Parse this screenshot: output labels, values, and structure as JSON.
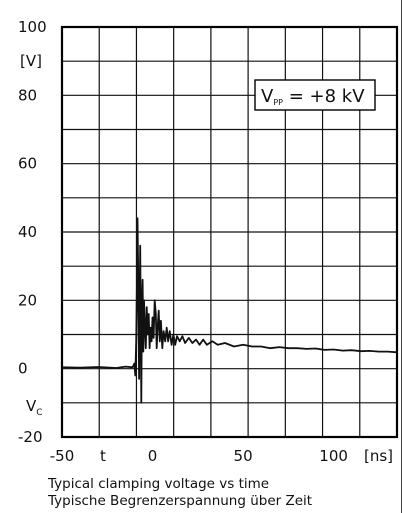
{
  "chart_data": {
    "type": "line",
    "xlabel": "t",
    "ylabel": "V",
    "ylabel_sub": "C",
    "x_unit": "[ns]",
    "y_unit": "[V]",
    "xlim": [
      -50,
      135
    ],
    "ylim": [
      -20,
      100
    ],
    "x_ticks": [
      {
        "value": -50,
        "label": "-50"
      },
      {
        "value": 0,
        "label": "0"
      },
      {
        "value": 50,
        "label": "50"
      },
      {
        "value": 100,
        "label": "100"
      }
    ],
    "y_ticks": [
      {
        "value": -20,
        "label": "-20"
      },
      {
        "value": 0,
        "label": "0"
      },
      {
        "value": 20,
        "label": "20"
      },
      {
        "value": 40,
        "label": "40"
      },
      {
        "value": 60,
        "label": "60"
      },
      {
        "value": 80,
        "label": "80"
      },
      {
        "value": 100,
        "label": "100"
      }
    ],
    "grid": true,
    "annotation": {
      "text_main": "V",
      "text_sub": "PP",
      "text_rest": " = +8 kV"
    },
    "series": [
      {
        "color": "#111111",
        "points": [
          [
            -50,
            0.4
          ],
          [
            -40,
            0.3
          ],
          [
            -30,
            0.5
          ],
          [
            -20,
            0.2
          ],
          [
            -15,
            0.6
          ],
          [
            -11,
            0.4
          ],
          [
            -10,
            1.5
          ],
          [
            -9.5,
            -2
          ],
          [
            -9,
            8
          ],
          [
            -8.6,
            26
          ],
          [
            -8.3,
            44
          ],
          [
            -8,
            30
          ],
          [
            -7.7,
            10
          ],
          [
            -7.4,
            -3
          ],
          [
            -7.1,
            20
          ],
          [
            -6.8,
            36
          ],
          [
            -6.5,
            12
          ],
          [
            -6.2,
            -10
          ],
          [
            -5.9,
            18
          ],
          [
            -5.5,
            26
          ],
          [
            -5.1,
            5
          ],
          [
            -4.7,
            20
          ],
          [
            -4.2,
            12
          ],
          [
            -3.7,
            6
          ],
          [
            -3.2,
            18
          ],
          [
            -2.6,
            10
          ],
          [
            -2.1,
            16
          ],
          [
            -1.6,
            6
          ],
          [
            -1.1,
            12
          ],
          [
            -0.5,
            8
          ],
          [
            0,
            15
          ],
          [
            0.6,
            9
          ],
          [
            1.2,
            20
          ],
          [
            1.8,
            16
          ],
          [
            2.3,
            6
          ],
          [
            2.8,
            12
          ],
          [
            3.4,
            17
          ],
          [
            4,
            8
          ],
          [
            4.6,
            14
          ],
          [
            5.4,
            6
          ],
          [
            6.1,
            11
          ],
          [
            7,
            8
          ],
          [
            7.8,
            12
          ],
          [
            8.6,
            8
          ],
          [
            9.5,
            11
          ],
          [
            10.5,
            7
          ],
          [
            11.5,
            10
          ],
          [
            12.5,
            7
          ],
          [
            13.5,
            9.5
          ],
          [
            15,
            8
          ],
          [
            16.5,
            9.5
          ],
          [
            18,
            7.5
          ],
          [
            20,
            9
          ],
          [
            22,
            7.5
          ],
          [
            24,
            8.5
          ],
          [
            26,
            7
          ],
          [
            28,
            8.5
          ],
          [
            30,
            7
          ],
          [
            33,
            8
          ],
          [
            36,
            7
          ],
          [
            40,
            7.5
          ],
          [
            45,
            6.5
          ],
          [
            50,
            7
          ],
          [
            55,
            6.5
          ],
          [
            60,
            6.5
          ],
          [
            65,
            6
          ],
          [
            70,
            6.3
          ],
          [
            75,
            6
          ],
          [
            80,
            6
          ],
          [
            85,
            5.8
          ],
          [
            90,
            5.9
          ],
          [
            95,
            5.5
          ],
          [
            100,
            5.6
          ],
          [
            105,
            5.3
          ],
          [
            110,
            5.4
          ],
          [
            115,
            5.1
          ],
          [
            120,
            5.2
          ],
          [
            125,
            5
          ],
          [
            130,
            5
          ],
          [
            135,
            4.8
          ]
        ]
      }
    ]
  },
  "captions": {
    "line1": "Typical clamping voltage vs time",
    "line2": "Typische Begrenzerspannung über Zeit"
  }
}
